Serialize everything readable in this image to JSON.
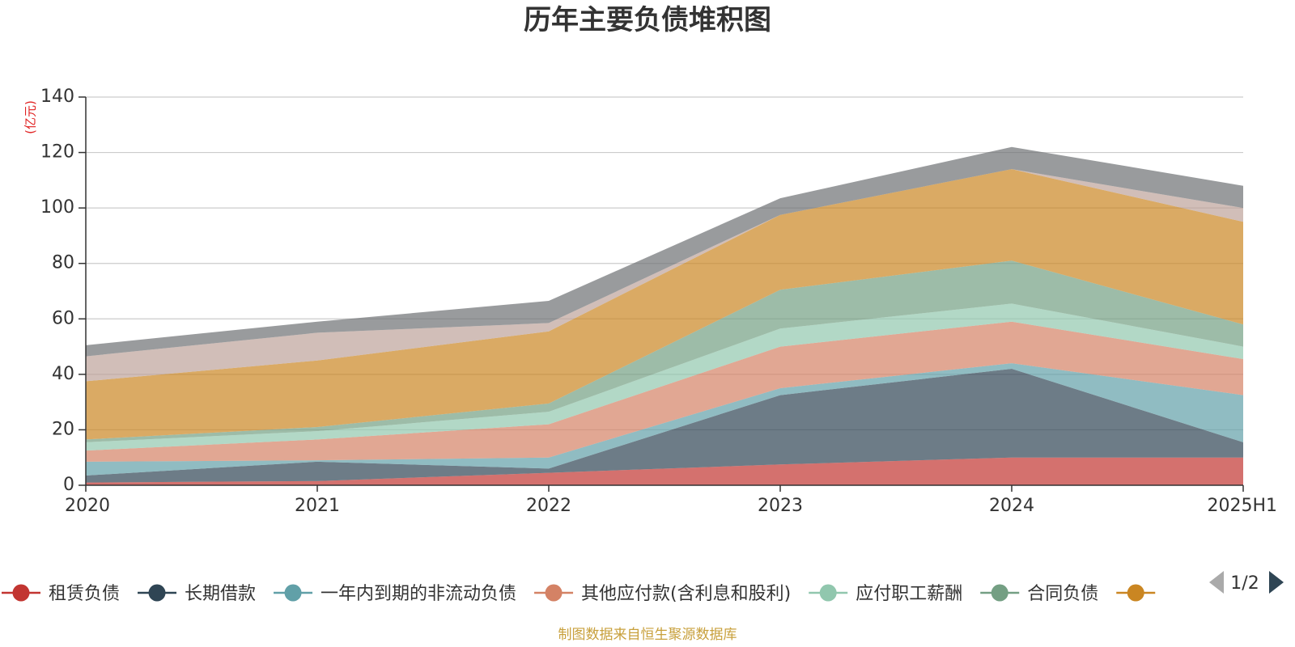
{
  "chart_data": {
    "type": "area",
    "stacked": true,
    "title": "历年主要负债堆积图",
    "unit": "(亿元)",
    "categories": [
      "2020",
      "2021",
      "2022",
      "2023",
      "2024",
      "2025H1"
    ],
    "ylim": [
      0,
      140
    ],
    "yticks": [
      0,
      20,
      40,
      60,
      80,
      100,
      120,
      140
    ],
    "grid": true,
    "series": [
      {
        "name": "租赁负债",
        "color": "#c23531",
        "values": [
          1,
          1.5,
          4.5,
          7.5,
          10,
          10
        ]
      },
      {
        "name": "长期借款",
        "color": "#2f4554",
        "values": [
          2.5,
          7,
          1.5,
          25,
          32,
          5.5
        ]
      },
      {
        "name": "一年内到期的非流动负债",
        "color": "#61a0a8",
        "values": [
          5,
          0.5,
          4,
          2.5,
          2,
          17
        ]
      },
      {
        "name": "其他应付款(含利息和股利)",
        "color": "#d48265",
        "values": [
          4,
          7.5,
          12,
          15,
          15,
          13
        ]
      },
      {
        "name": "应付职工薪酬",
        "color": "#91c7ae",
        "values": [
          3,
          3,
          4.5,
          6.5,
          6.5,
          4.5
        ]
      },
      {
        "name": "合同负债",
        "color": "#749f83",
        "values": [
          1,
          1.5,
          3,
          14,
          15.5,
          8
        ]
      },
      {
        "name": "",
        "color": "#ca8622",
        "values": [
          21,
          24,
          26,
          27,
          33,
          37
        ]
      },
      {
        "name": "",
        "color": "#bda29a",
        "values": [
          9,
          10,
          3,
          0,
          0,
          5
        ]
      },
      {
        "name": "",
        "color": "#6e7074",
        "values": [
          4,
          4,
          8,
          6,
          8,
          8
        ]
      }
    ],
    "legend_position": "bottom",
    "legend_page": "1/2"
  },
  "footer": {
    "source": "制图数据来自恒生聚源数据库"
  },
  "colors": {
    "axis": "#333333",
    "grid": "#cccccc",
    "pager_active": "#2f4554",
    "pager_inactive": "#aaaaaa"
  }
}
